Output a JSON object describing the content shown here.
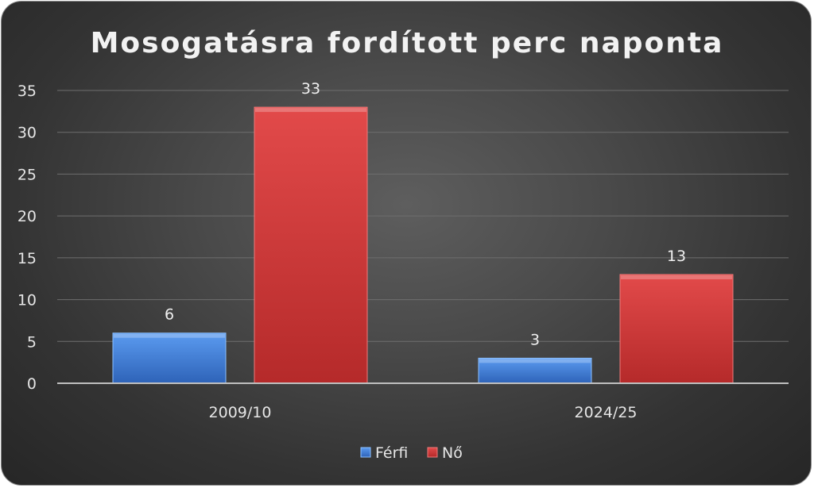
{
  "chart_data": {
    "type": "bar",
    "title": "Mosogatásra fordított perc naponta",
    "categories": [
      "2009/10",
      "2024/25"
    ],
    "series": [
      {
        "name": "Férfi",
        "values": [
          6,
          3
        ],
        "color": "#3f7fd6"
      },
      {
        "name": "Nő",
        "values": [
          33,
          13
        ],
        "color": "#d63c3c"
      }
    ],
    "ylim": [
      0,
      35
    ],
    "yticks": [
      0,
      5,
      10,
      15,
      20,
      25,
      30,
      35
    ],
    "grid": true,
    "legend": "bottom",
    "xlabel": "",
    "ylabel": ""
  }
}
